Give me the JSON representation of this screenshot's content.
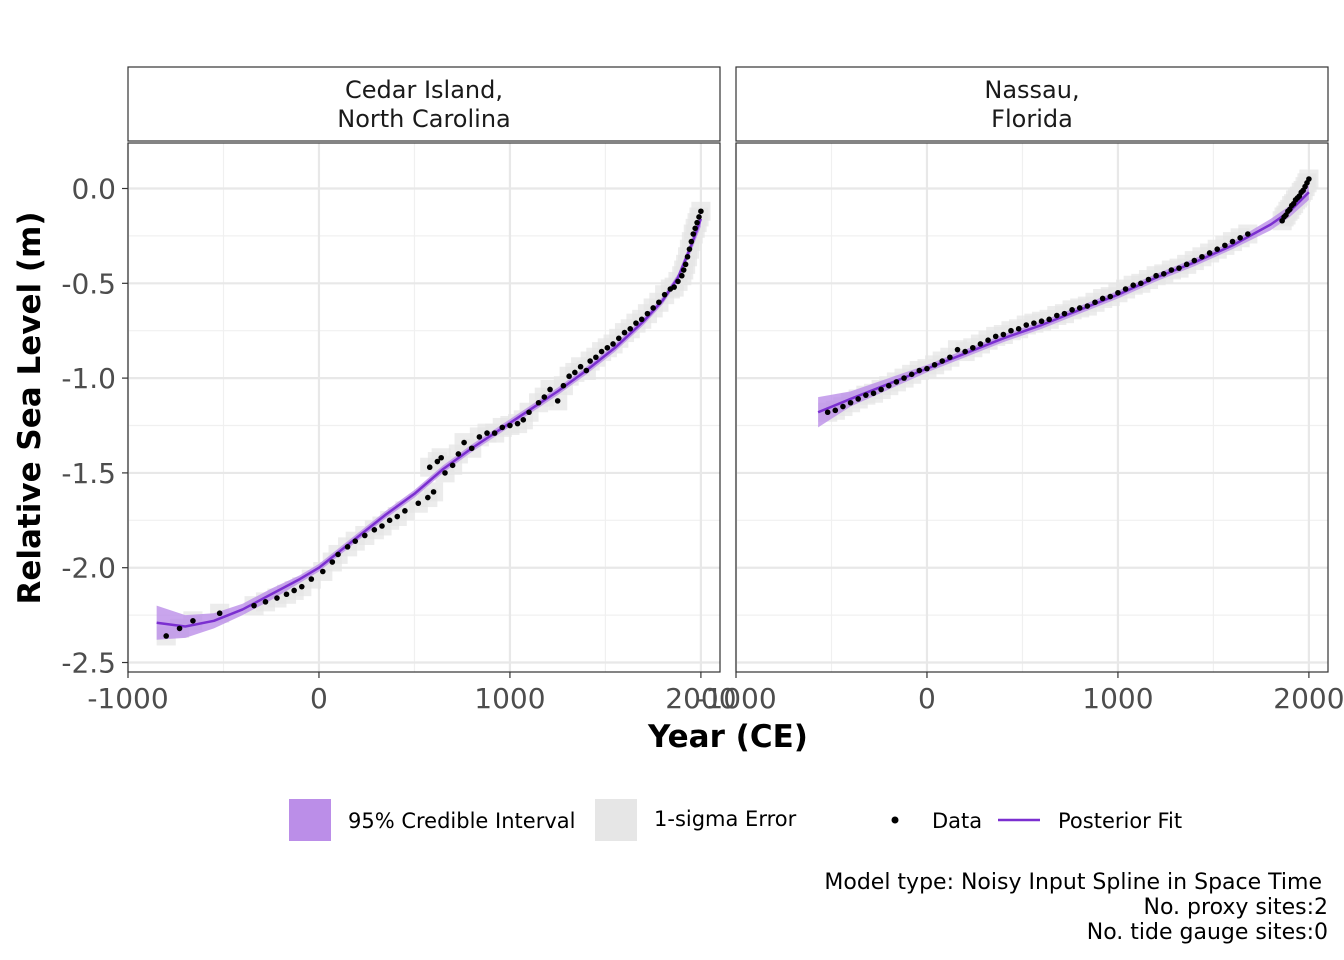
{
  "chart_data": {
    "type": "scatter",
    "x_label": "Year (CE)",
    "y_label": "Relative Sea Level (m)",
    "xlim": [
      -1000,
      2100
    ],
    "ylim": [
      -2.55,
      0.24
    ],
    "x_ticks": [
      -1000,
      0,
      1000,
      2000
    ],
    "x_tick_labels": [
      "-1000",
      "0",
      "1000",
      "2000"
    ],
    "y_ticks": [
      0.0,
      -0.5,
      -1.0,
      -1.5,
      -2.0,
      -2.5
    ],
    "y_tick_labels": [
      "0.0",
      "-0.5",
      "-1.0",
      "-1.5",
      "-2.0",
      "-2.5"
    ],
    "grid": true,
    "legend_position": "bottom",
    "colors": {
      "fit": "#7b2fd0",
      "credible_interval": "#bb8ee8",
      "sigma_error": "#e6e6e6",
      "data": "#000000"
    },
    "legend": {
      "items": [
        {
          "label": "95% Credible Interval",
          "kind": "fill-ci"
        },
        {
          "label": "1-sigma Error",
          "kind": "fill-sigma"
        },
        {
          "label": "Data",
          "kind": "point"
        },
        {
          "label": "Posterior Fit",
          "kind": "line"
        }
      ]
    },
    "caption": [
      "Model type: Noisy Input Spline in Space Time",
      "No. proxy sites:2",
      "No. tide gauge sites:0"
    ],
    "panels": [
      {
        "title": [
          "Cedar Island,",
          "North Carolina"
        ],
        "fit": {
          "x": [
            -850,
            -700,
            -550,
            -400,
            -250,
            -100,
            0,
            100,
            200,
            350,
            500,
            650,
            800,
            950,
            1100,
            1250,
            1400,
            1550,
            1700,
            1800,
            1880,
            1950,
            2000
          ],
          "y": [
            -2.29,
            -2.31,
            -2.28,
            -2.22,
            -2.14,
            -2.06,
            -2.0,
            -1.92,
            -1.84,
            -1.72,
            -1.61,
            -1.48,
            -1.37,
            -1.27,
            -1.17,
            -1.07,
            -0.96,
            -0.84,
            -0.7,
            -0.59,
            -0.47,
            -0.3,
            -0.16
          ],
          "ci_halfwidth": [
            0.09,
            0.06,
            0.04,
            0.03,
            0.03,
            0.02,
            0.02,
            0.02,
            0.02,
            0.02,
            0.02,
            0.02,
            0.02,
            0.02,
            0.02,
            0.02,
            0.02,
            0.02,
            0.02,
            0.02,
            0.02,
            0.03,
            0.04
          ]
        },
        "data": [
          [
            -800,
            -2.36
          ],
          [
            -730,
            -2.32
          ],
          [
            -660,
            -2.28
          ],
          [
            -520,
            -2.24
          ],
          [
            -340,
            -2.2
          ],
          [
            -280,
            -2.18
          ],
          [
            -220,
            -2.16
          ],
          [
            -170,
            -2.14
          ],
          [
            -130,
            -2.12
          ],
          [
            -90,
            -2.1
          ],
          [
            -40,
            -2.06
          ],
          [
            20,
            -2.02
          ],
          [
            70,
            -1.97
          ],
          [
            100,
            -1.93
          ],
          [
            150,
            -1.89
          ],
          [
            190,
            -1.86
          ],
          [
            240,
            -1.83
          ],
          [
            290,
            -1.8
          ],
          [
            330,
            -1.78
          ],
          [
            370,
            -1.75
          ],
          [
            410,
            -1.73
          ],
          [
            450,
            -1.7
          ],
          [
            520,
            -1.66
          ],
          [
            570,
            -1.63
          ],
          [
            580,
            -1.47
          ],
          [
            600,
            -1.6
          ],
          [
            620,
            -1.44
          ],
          [
            640,
            -1.42
          ],
          [
            660,
            -1.5
          ],
          [
            700,
            -1.46
          ],
          [
            730,
            -1.4
          ],
          [
            760,
            -1.34
          ],
          [
            800,
            -1.37
          ],
          [
            840,
            -1.31
          ],
          [
            880,
            -1.29
          ],
          [
            920,
            -1.29
          ],
          [
            960,
            -1.26
          ],
          [
            1000,
            -1.25
          ],
          [
            1040,
            -1.24
          ],
          [
            1070,
            -1.22
          ],
          [
            1100,
            -1.18
          ],
          [
            1150,
            -1.13
          ],
          [
            1180,
            -1.1
          ],
          [
            1210,
            -1.06
          ],
          [
            1250,
            -1.12
          ],
          [
            1280,
            -1.04
          ],
          [
            1310,
            -0.99
          ],
          [
            1340,
            -0.97
          ],
          [
            1370,
            -0.94
          ],
          [
            1400,
            -0.96
          ],
          [
            1420,
            -0.91
          ],
          [
            1450,
            -0.89
          ],
          [
            1480,
            -0.86
          ],
          [
            1510,
            -0.84
          ],
          [
            1540,
            -0.82
          ],
          [
            1570,
            -0.79
          ],
          [
            1600,
            -0.76
          ],
          [
            1630,
            -0.74
          ],
          [
            1660,
            -0.71
          ],
          [
            1690,
            -0.69
          ],
          [
            1720,
            -0.66
          ],
          [
            1750,
            -0.63
          ],
          [
            1780,
            -0.6
          ],
          [
            1810,
            -0.56
          ],
          [
            1840,
            -0.53
          ],
          [
            1860,
            -0.52
          ],
          [
            1880,
            -0.49
          ],
          [
            1900,
            -0.46
          ],
          [
            1910,
            -0.43
          ],
          [
            1920,
            -0.4
          ],
          [
            1930,
            -0.36
          ],
          [
            1940,
            -0.32
          ],
          [
            1950,
            -0.28
          ],
          [
            1960,
            -0.24
          ],
          [
            1970,
            -0.21
          ],
          [
            1980,
            -0.18
          ],
          [
            1990,
            -0.15
          ],
          [
            2000,
            -0.12
          ]
        ]
      },
      {
        "title": [
          "Nassau,",
          "Florida"
        ],
        "fit": {
          "x": [
            -570,
            -400,
            -200,
            0,
            200,
            400,
            600,
            800,
            1000,
            1200,
            1400,
            1600,
            1800,
            1900,
            2000
          ],
          "y": [
            -1.18,
            -1.11,
            -1.03,
            -0.95,
            -0.87,
            -0.79,
            -0.72,
            -0.64,
            -0.56,
            -0.47,
            -0.39,
            -0.3,
            -0.19,
            -0.12,
            -0.02
          ],
          "ci_halfwidth": [
            0.08,
            0.04,
            0.03,
            0.02,
            0.02,
            0.02,
            0.02,
            0.02,
            0.02,
            0.02,
            0.02,
            0.02,
            0.03,
            0.03,
            0.04
          ]
        },
        "data": [
          [
            -520,
            -1.18
          ],
          [
            -480,
            -1.17
          ],
          [
            -440,
            -1.15
          ],
          [
            -400,
            -1.13
          ],
          [
            -360,
            -1.11
          ],
          [
            -320,
            -1.09
          ],
          [
            -280,
            -1.08
          ],
          [
            -240,
            -1.06
          ],
          [
            -200,
            -1.04
          ],
          [
            -160,
            -1.02
          ],
          [
            -120,
            -1.0
          ],
          [
            -80,
            -0.98
          ],
          [
            -40,
            -0.96
          ],
          [
            0,
            -0.95
          ],
          [
            40,
            -0.93
          ],
          [
            80,
            -0.91
          ],
          [
            120,
            -0.89
          ],
          [
            160,
            -0.85
          ],
          [
            200,
            -0.86
          ],
          [
            240,
            -0.84
          ],
          [
            280,
            -0.82
          ],
          [
            320,
            -0.8
          ],
          [
            360,
            -0.78
          ],
          [
            400,
            -0.77
          ],
          [
            440,
            -0.75
          ],
          [
            480,
            -0.74
          ],
          [
            520,
            -0.72
          ],
          [
            560,
            -0.71
          ],
          [
            600,
            -0.7
          ],
          [
            640,
            -0.69
          ],
          [
            680,
            -0.67
          ],
          [
            720,
            -0.66
          ],
          [
            760,
            -0.64
          ],
          [
            800,
            -0.63
          ],
          [
            840,
            -0.62
          ],
          [
            880,
            -0.6
          ],
          [
            920,
            -0.58
          ],
          [
            960,
            -0.57
          ],
          [
            1000,
            -0.55
          ],
          [
            1040,
            -0.53
          ],
          [
            1080,
            -0.51
          ],
          [
            1120,
            -0.5
          ],
          [
            1160,
            -0.48
          ],
          [
            1200,
            -0.46
          ],
          [
            1240,
            -0.45
          ],
          [
            1280,
            -0.43
          ],
          [
            1320,
            -0.42
          ],
          [
            1360,
            -0.4
          ],
          [
            1400,
            -0.38
          ],
          [
            1440,
            -0.36
          ],
          [
            1480,
            -0.34
          ],
          [
            1520,
            -0.32
          ],
          [
            1560,
            -0.3
          ],
          [
            1600,
            -0.28
          ],
          [
            1640,
            -0.26
          ],
          [
            1680,
            -0.24
          ],
          [
            1860,
            -0.17
          ],
          [
            1870,
            -0.15
          ],
          [
            1880,
            -0.14
          ],
          [
            1890,
            -0.12
          ],
          [
            1900,
            -0.11
          ],
          [
            1910,
            -0.09
          ],
          [
            1920,
            -0.08
          ],
          [
            1930,
            -0.06
          ],
          [
            1940,
            -0.05
          ],
          [
            1950,
            -0.04
          ],
          [
            1960,
            -0.02
          ],
          [
            1970,
            -0.01
          ],
          [
            1980,
            0.01
          ],
          [
            1990,
            0.03
          ],
          [
            2000,
            0.05
          ]
        ]
      }
    ]
  }
}
